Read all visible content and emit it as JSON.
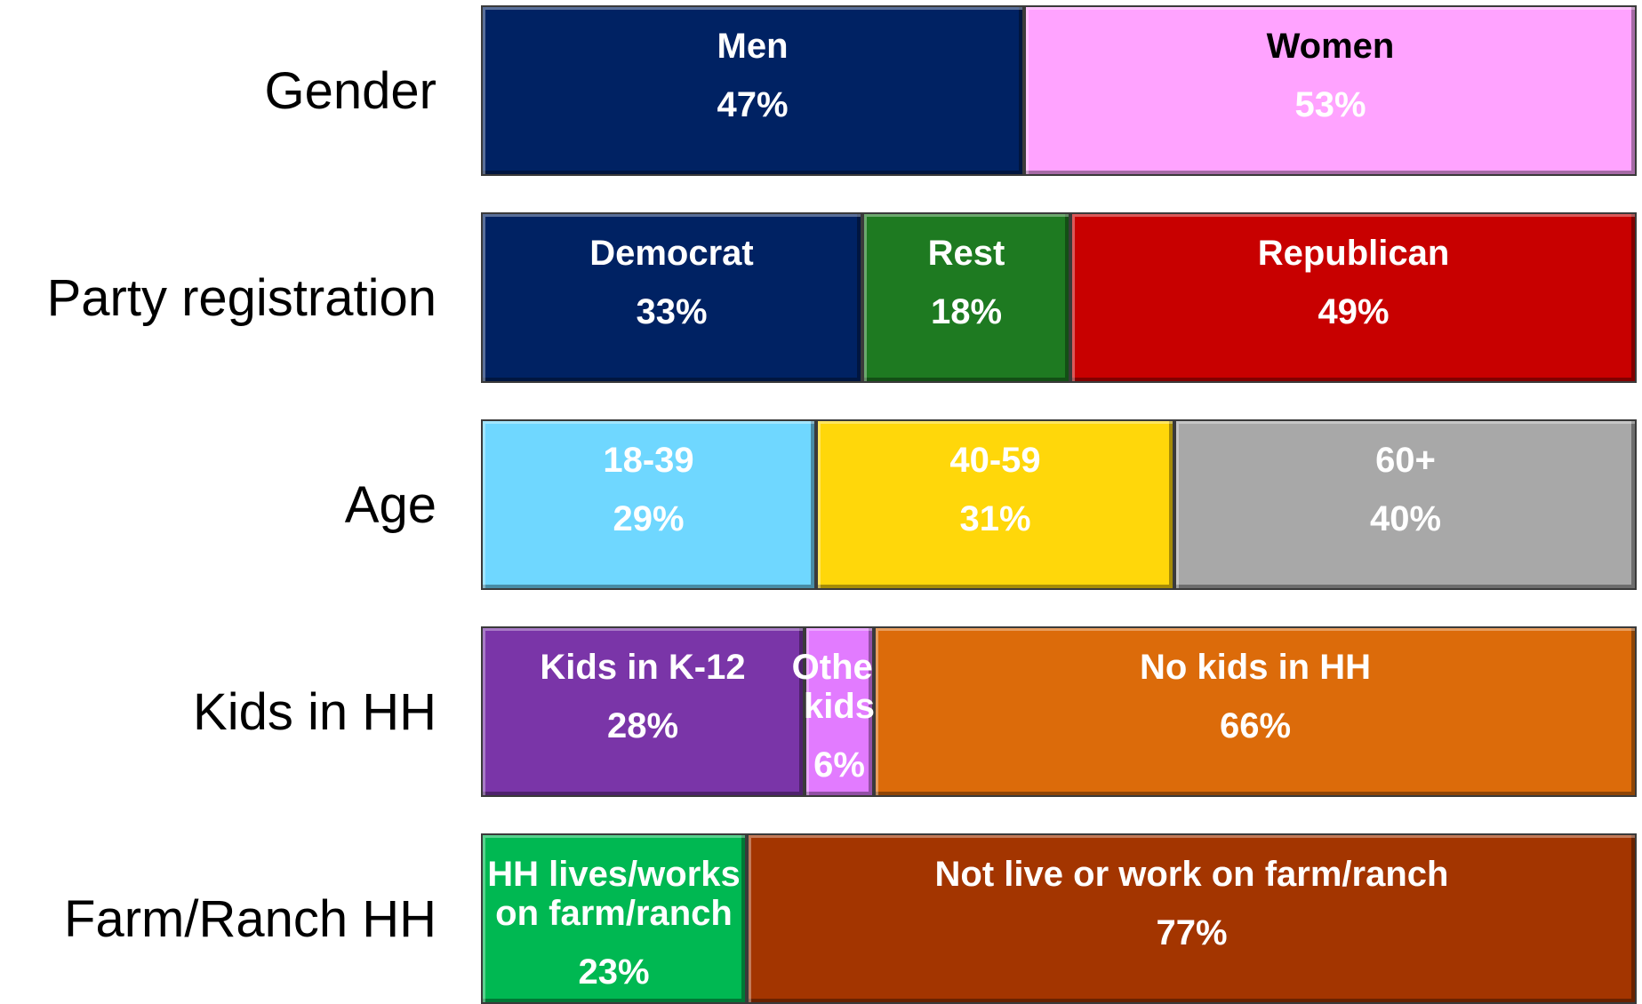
{
  "chart_data": {
    "type": "stacked-bar",
    "rows": [
      {
        "label": "Gender",
        "segments": [
          {
            "name": "Men",
            "color": "#002263",
            "value": 47,
            "value_label": "47%"
          },
          {
            "name": "Women",
            "color": "#ffa3ff",
            "value": 53,
            "value_label": "53%",
            "name_color": "#000000"
          }
        ]
      },
      {
        "label": "Party registration",
        "segments": [
          {
            "name": "Democrat",
            "color": "#002263",
            "value": 33,
            "value_label": "33%"
          },
          {
            "name": "Rest",
            "color": "#1e7a21",
            "value": 18,
            "value_label": "18%"
          },
          {
            "name": "Republican",
            "color": "#c80000",
            "value": 49,
            "value_label": "49%"
          }
        ]
      },
      {
        "label": "Age",
        "segments": [
          {
            "name": "18-39",
            "color": "#6fd7ff",
            "value": 29,
            "value_label": "29%"
          },
          {
            "name": "40-59",
            "color": "#ffd70a",
            "value": 31,
            "value_label": "31%"
          },
          {
            "name": "60+",
            "color": "#a8a8a8",
            "value": 40,
            "value_label": "40%"
          }
        ]
      },
      {
        "label": "Kids in HH",
        "segments": [
          {
            "name": "Kids in K-12",
            "color": "#7a35a8",
            "value": 28,
            "value_label": "28%"
          },
          {
            "name": "Other kids",
            "color": "#e27bff",
            "value": 6,
            "value_label": "6%"
          },
          {
            "name": "No kids in HH",
            "color": "#dc6b0a",
            "value": 66,
            "value_label": "66%"
          }
        ]
      },
      {
        "label": "Farm/Ranch HH",
        "segments": [
          {
            "name": "HH lives/works on farm/ranch",
            "color": "#00b852",
            "value": 23,
            "value_label": "23%"
          },
          {
            "name": "Not live or work on farm/ranch",
            "color": "#a33500",
            "value": 77,
            "value_label": "77%"
          }
        ]
      }
    ]
  }
}
